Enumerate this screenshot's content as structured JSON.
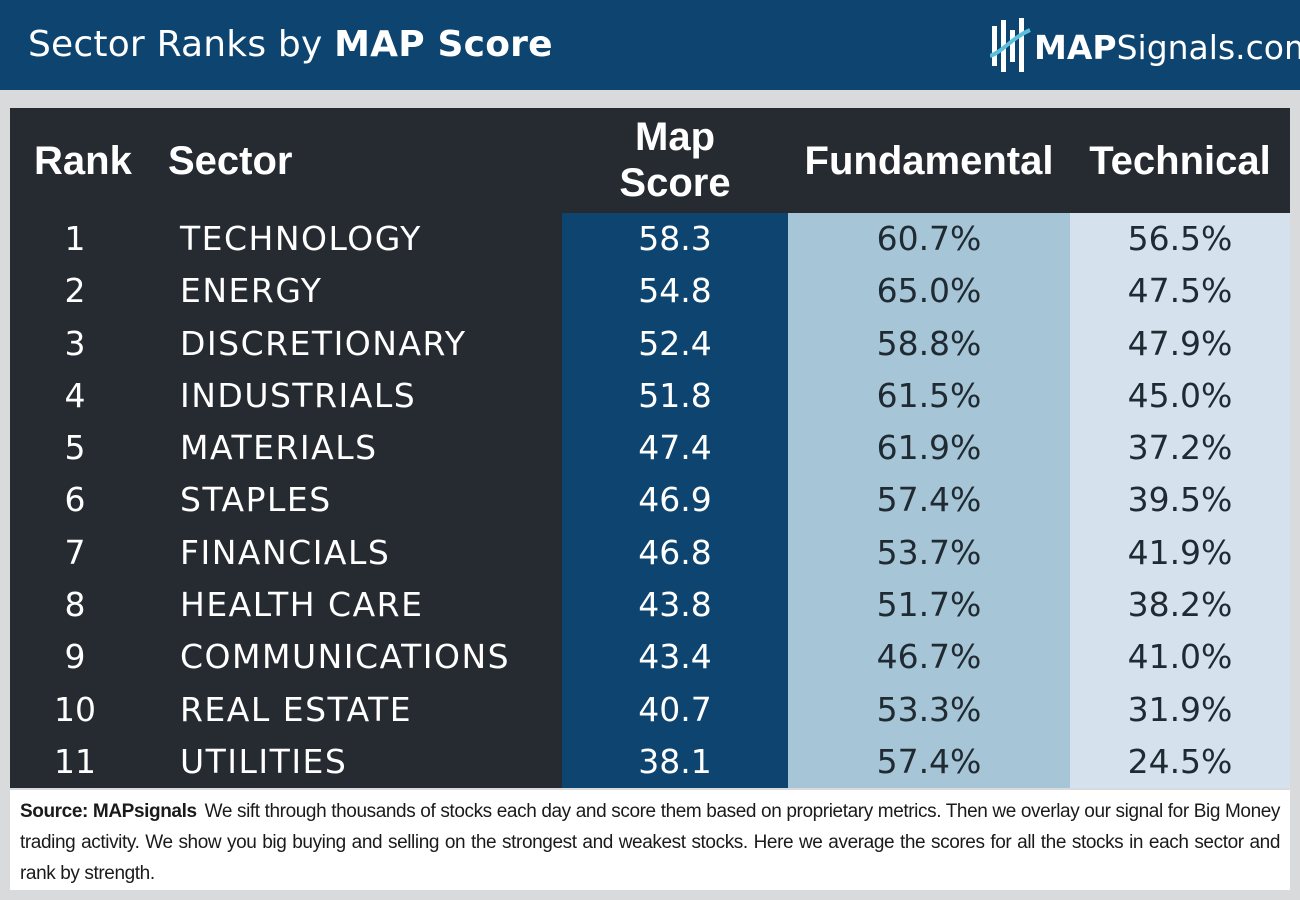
{
  "header": {
    "title_prefix": "Sector Ranks by ",
    "title_bold": "MAP Score",
    "logo_bold": "MAP",
    "logo_rest": "Signals.com"
  },
  "colors": {
    "header_bg": "#0d4470",
    "table_bg": "#262b31",
    "map_col": "#0d4470",
    "fund_col": "#a6c5d6",
    "tech_col": "#d5e1ed",
    "footer_bg": "#ffffff"
  },
  "chart_data": {
    "type": "table",
    "title": "Sector Ranks by MAP Score",
    "columns": {
      "rank": "Rank",
      "sector": "Sector",
      "map_line1": "Map",
      "map_line2": "Score",
      "fundamental": "Fundamental",
      "technical": "Technical"
    },
    "rows": [
      {
        "rank": "1",
        "sector": "TECHNOLOGY",
        "map": "58.3",
        "fund": "60.7%",
        "tech": "56.5%"
      },
      {
        "rank": "2",
        "sector": "ENERGY",
        "map": "54.8",
        "fund": "65.0%",
        "tech": "47.5%"
      },
      {
        "rank": "3",
        "sector": "DISCRETIONARY",
        "map": "52.4",
        "fund": "58.8%",
        "tech": "47.9%"
      },
      {
        "rank": "4",
        "sector": "INDUSTRIALS",
        "map": "51.8",
        "fund": "61.5%",
        "tech": "45.0%"
      },
      {
        "rank": "5",
        "sector": "MATERIALS",
        "map": "47.4",
        "fund": "61.9%",
        "tech": "37.2%"
      },
      {
        "rank": "6",
        "sector": "STAPLES",
        "map": "46.9",
        "fund": "57.4%",
        "tech": "39.5%"
      },
      {
        "rank": "7",
        "sector": "FINANCIALS",
        "map": "46.8",
        "fund": "53.7%",
        "tech": "41.9%"
      },
      {
        "rank": "8",
        "sector": "HEALTH CARE",
        "map": "43.8",
        "fund": "51.7%",
        "tech": "38.2%"
      },
      {
        "rank": "9",
        "sector": "COMMUNICATIONS",
        "map": "43.4",
        "fund": "46.7%",
        "tech": "41.0%"
      },
      {
        "rank": "10",
        "sector": "REAL ESTATE",
        "map": "40.7",
        "fund": "53.3%",
        "tech": "31.9%"
      },
      {
        "rank": "11",
        "sector": "UTILITIES",
        "map": "38.1",
        "fund": "57.4%",
        "tech": "24.5%"
      }
    ]
  },
  "footer": {
    "source_label": "Source:  MAPsignals",
    "text": "We sift through thousands of stocks each day and score them based on proprietary metrics. Then we overlay our signal for Big Money trading activity. We show you big buying and selling on the strongest and weakest stocks. Here we average the scores for all the stocks in each sector and rank by strength."
  }
}
